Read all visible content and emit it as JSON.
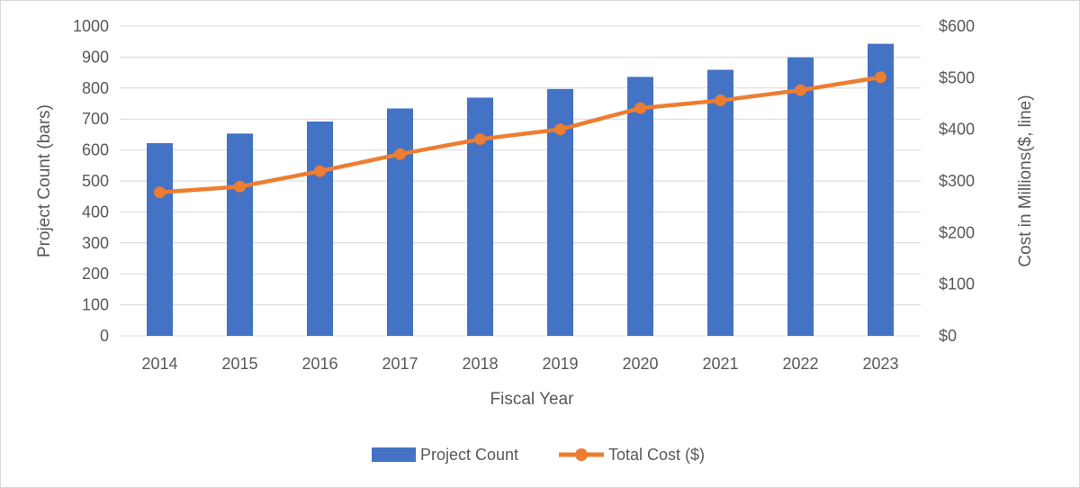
{
  "chart_data": {
    "type": "bar",
    "categories": [
      "2014",
      "2015",
      "2016",
      "2017",
      "2018",
      "2019",
      "2020",
      "2021",
      "2022",
      "2023"
    ],
    "series": [
      {
        "name": "Project Count",
        "type": "bar",
        "axis": "left",
        "color": "#4472c4",
        "values": [
          622,
          653,
          692,
          734,
          769,
          797,
          836,
          859,
          899,
          943
        ]
      },
      {
        "name": "Total Cost ($)",
        "type": "line",
        "axis": "right",
        "color": "#ed7d31",
        "marker": "circle",
        "values": [
          278,
          289,
          319,
          352,
          381,
          400,
          441,
          456,
          476,
          501
        ]
      }
    ],
    "xlabel": "Fiscal Year",
    "ylabel": "Project Count (bars)",
    "y2label": "Cost in Millions($, line)",
    "ylim": [
      0,
      1000
    ],
    "y2lim": [
      0,
      600
    ],
    "yticks": [
      "0",
      "100",
      "200",
      "300",
      "400",
      "500",
      "600",
      "700",
      "800",
      "900",
      "1000"
    ],
    "y2ticks": [
      "$0",
      "$100",
      "$200",
      "$300",
      "$400",
      "$500",
      "$600"
    ],
    "grid": true,
    "legend_position": "bottom",
    "colors": {
      "gridline": "#d9d9d9",
      "text": "#595959"
    }
  }
}
